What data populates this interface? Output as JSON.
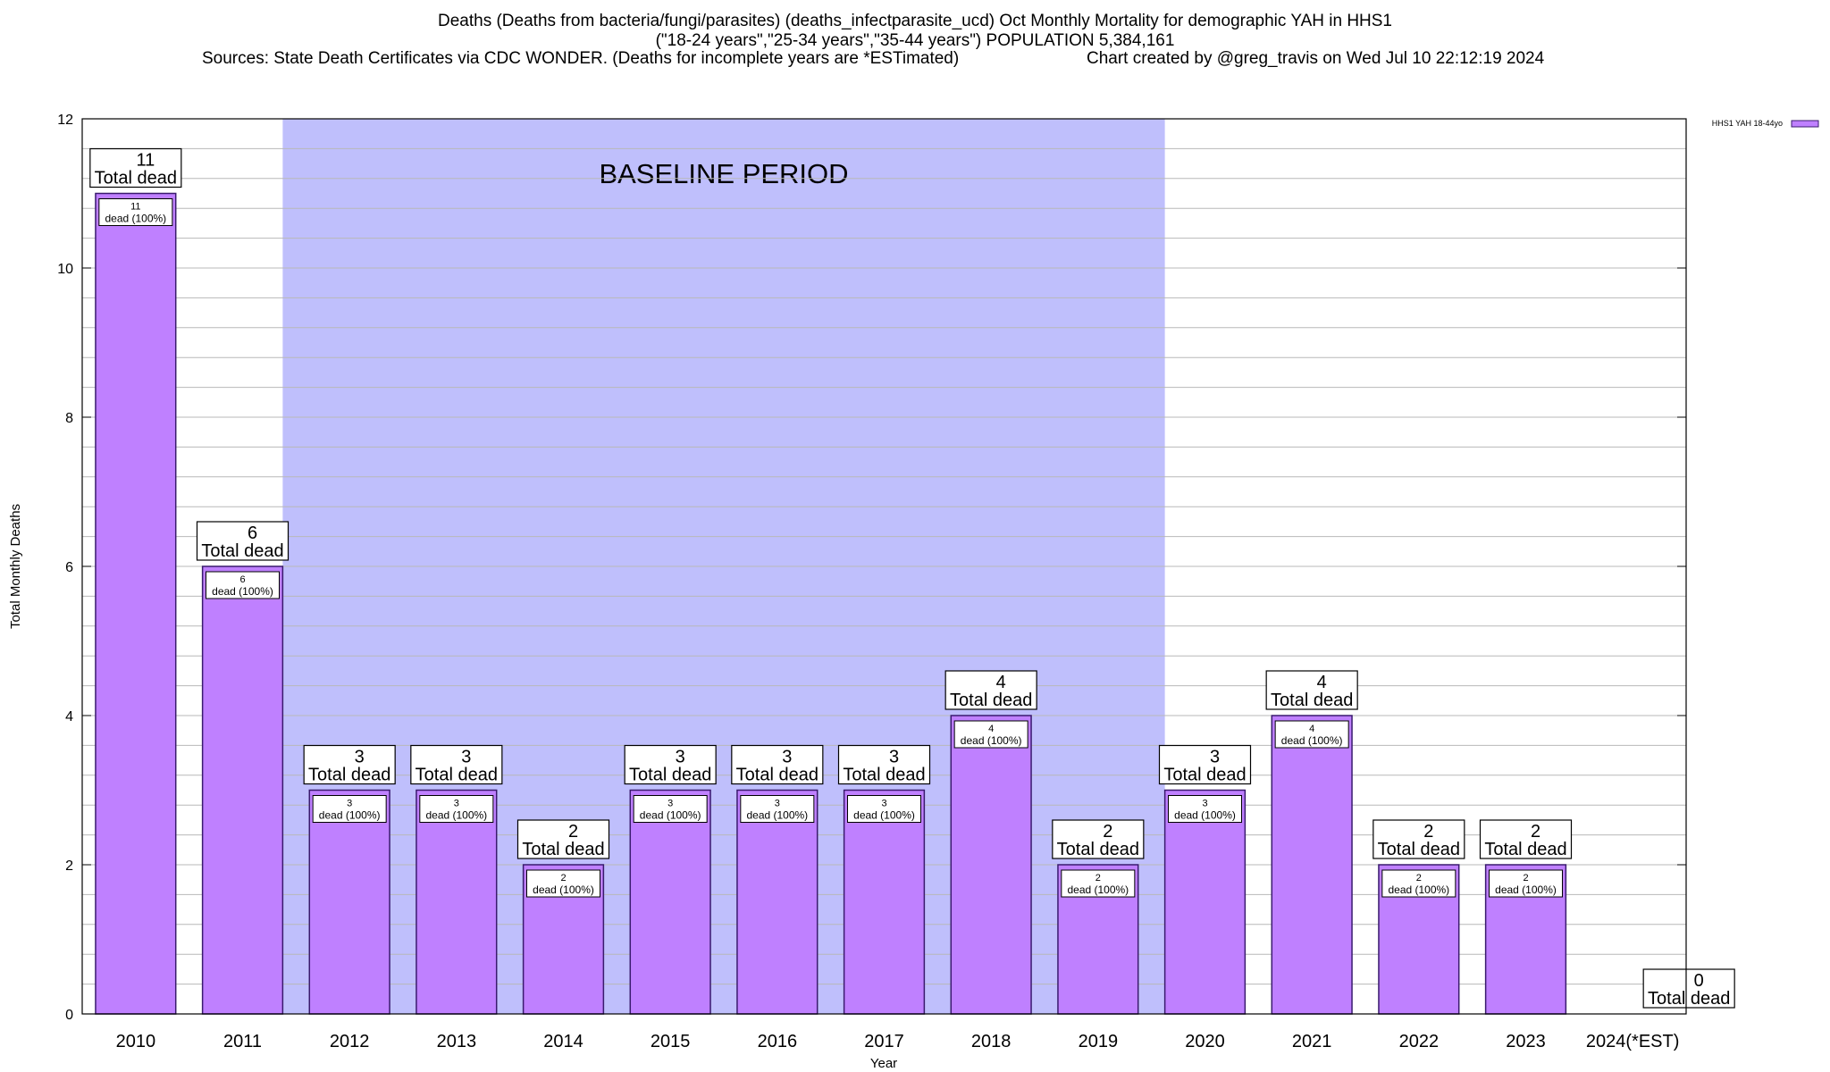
{
  "header": {
    "title_line1": "Deaths (Deaths from bacteria/fungi/parasites) (deaths_infectparasite_ucd) Oct Monthly Mortality for demographic YAH in HHS1",
    "title_line2": "(\"18-24 years\",\"25-34 years\",\"35-44 years\") POPULATION 5,384,161",
    "sources": "Sources: State Death Certificates via CDC WONDER. (Deaths for incomplete years are *ESTimated)",
    "credit": "Chart created by @greg_travis on Wed Jul 10 22:12:19 2024"
  },
  "colors": {
    "bar_fill": "#bf80ff",
    "bar_stroke": "#3a1a6e",
    "baseline_fill": "#bfbffc",
    "grid": "#b8b8b8"
  },
  "chart_data": {
    "type": "bar",
    "xlabel": "Year",
    "ylabel": "Total Monthly Deaths",
    "ylim": [
      0,
      12
    ],
    "yticks": [
      0,
      2,
      4,
      6,
      8,
      10,
      12
    ],
    "categories": [
      "2010",
      "2011",
      "2012",
      "2013",
      "2014",
      "2015",
      "2016",
      "2017",
      "2018",
      "2019",
      "2020",
      "2021",
      "2022",
      "2023",
      "2024(*EST)"
    ],
    "series": [
      {
        "name": "HHS1 YAH 18-44yo",
        "values": [
          11,
          6,
          3,
          3,
          2,
          3,
          3,
          3,
          4,
          2,
          3,
          4,
          2,
          2,
          0
        ]
      }
    ],
    "total_label_suffix": "Total dead",
    "inner_label_suffix": "dead (100%)",
    "baseline_region": {
      "label": "BASELINE PERIOD",
      "from": "2012",
      "to": "2019"
    },
    "grid": true,
    "legend_position": "top-right"
  }
}
